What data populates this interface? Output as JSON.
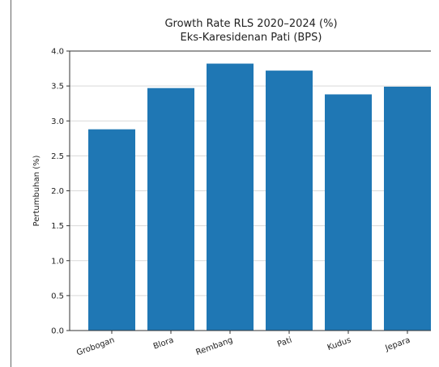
{
  "chart_data": {
    "type": "bar",
    "title": "Growth Rate RLS 2020–2024 (%)",
    "subtitle": "Eks-Karesidenan Pati (BPS)",
    "xlabel": "",
    "ylabel": "Pertumbuhan (%)",
    "categories": [
      "Grobogan",
      "Blora",
      "Rembang",
      "Pati",
      "Kudus",
      "Jepara"
    ],
    "values": [
      2.88,
      3.47,
      3.82,
      3.72,
      3.38,
      3.49
    ],
    "ylim": [
      0,
      4.0
    ],
    "yticks": [
      "0.0",
      "0.5",
      "1.0",
      "1.5",
      "2.0",
      "2.5",
      "3.0",
      "3.5",
      "4.0"
    ],
    "grid": "horizontal",
    "legend": "none",
    "bar_color": "#1f77b4",
    "grid_color": "#d9d9d9"
  }
}
